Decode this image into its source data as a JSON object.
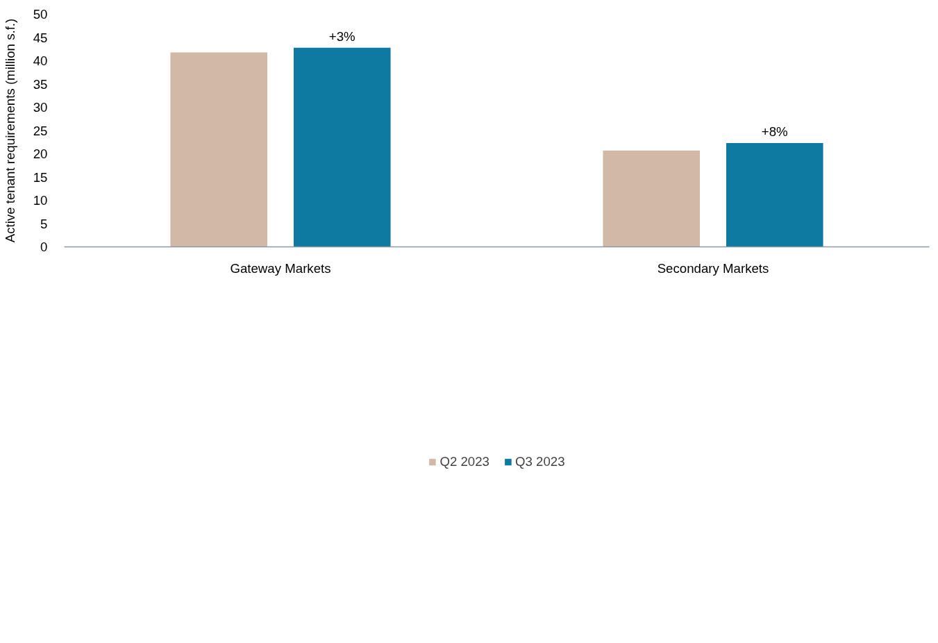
{
  "chart_data": {
    "type": "bar",
    "ylabel": "Active tenant requirements (million s.f.)",
    "categories": [
      "Gateway Markets",
      "Secondary Markets"
    ],
    "series": [
      {
        "name": "Q2 2023",
        "color": "#d2b8a6",
        "values": [
          41.8,
          20.7
        ]
      },
      {
        "name": "Q3 2023",
        "color": "#0e7aa1",
        "values": [
          42.8,
          22.3
        ]
      }
    ],
    "annotations": [
      "+3%",
      "+8%"
    ],
    "ylim": [
      0,
      50
    ],
    "yticks": [
      0,
      5,
      10,
      15,
      20,
      25,
      30,
      35,
      40,
      45,
      50
    ],
    "grid": false,
    "legend": "bottom"
  }
}
